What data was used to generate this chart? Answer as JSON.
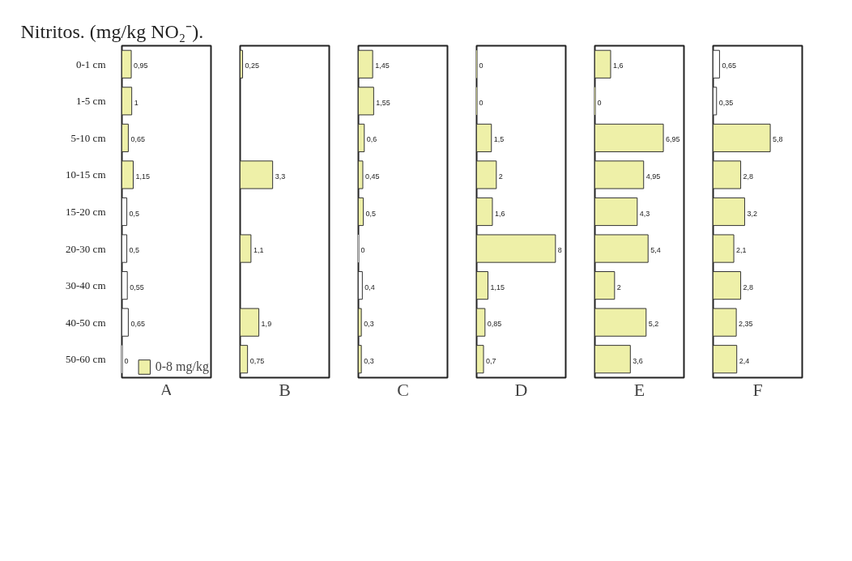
{
  "chart_data": [
    {
      "type": "bar",
      "orientation": "horizontal",
      "title": "Nitritos. (mg/kg NO₂⁻).",
      "xlabel": "A",
      "categories": [
        "0-1 cm",
        "1-5 cm",
        "5-10 cm",
        "10-15 cm",
        "15-20 cm",
        "20-30 cm",
        "30-40 cm",
        "40-50 cm",
        "50-60 cm"
      ],
      "tick_labels": "y",
      "legend": "bottom",
      "series": [
        {
          "name": "0-8 mg/kg",
          "color": "#eef0a8",
          "colors": [
            "#eef0a8",
            "#eef0a8",
            "#eef0a8",
            "#eef0a8",
            "#ffffff",
            "#ffffff",
            "#ffffff",
            "#ffffff",
            "#ffffff"
          ],
          "values": [
            0.95,
            1,
            0.65,
            1.15,
            0.5,
            0.5,
            0.55,
            0.65,
            0
          ],
          "value_labels": [
            "0,95",
            "1",
            "0,65",
            "1,15",
            "0,5",
            "0,5",
            "0,55",
            "0,65",
            "0"
          ]
        }
      ]
    },
    {
      "type": "bar",
      "orientation": "horizontal",
      "xlabel": "B",
      "categories": [
        null,
        null,
        null,
        null,
        null,
        null,
        null,
        null,
        null
      ],
      "tick_labels": false,
      "series": [
        {
          "color": "#eef0a8",
          "values": [
            0.25,
            null,
            null,
            3.3,
            null,
            1.1,
            null,
            1.9,
            0.75
          ],
          "value_labels": [
            "0,25",
            null,
            null,
            "3,3",
            null,
            "1,1",
            null,
            "1,9",
            "0,75"
          ]
        }
      ]
    },
    {
      "type": "bar",
      "orientation": "horizontal",
      "xlabel": "C",
      "categories": [
        null,
        null,
        null,
        null,
        null,
        null,
        null,
        null,
        null
      ],
      "tick_labels": false,
      "series": [
        {
          "color": "#eef0a8",
          "colors": [
            "#eef0a8",
            "#eef0a8",
            "#eef0a8",
            "#eef0a8",
            "#eef0a8",
            "#ffffff",
            "#ffffff",
            "#eef0a8",
            "#eef0a8"
          ],
          "values": [
            1.45,
            1.55,
            0.6,
            0.45,
            0.5,
            0,
            0.4,
            0.3,
            0.3
          ],
          "value_labels": [
            "1,45",
            "1,55",
            "0,6",
            "0,45",
            "0,5",
            "0",
            "0,4",
            "0,3",
            "0,3"
          ]
        }
      ]
    },
    {
      "type": "bar",
      "orientation": "horizontal",
      "xlabel": "D",
      "categories": [
        null,
        null,
        null,
        null,
        null,
        null,
        null,
        null,
        null
      ],
      "tick_labels": false,
      "series": [
        {
          "color": "#eef0a8",
          "values": [
            0,
            0,
            1.5,
            2,
            1.6,
            8,
            1.15,
            0.85,
            0.7
          ],
          "value_labels": [
            "0",
            "0",
            "1,5",
            "2",
            "1,6",
            "8",
            "1,15",
            "0,85",
            "0,7"
          ]
        }
      ]
    },
    {
      "type": "bar",
      "orientation": "horizontal",
      "xlabel": "E",
      "categories": [
        null,
        null,
        null,
        null,
        null,
        null,
        null,
        null,
        null
      ],
      "tick_labels": false,
      "series": [
        {
          "color": "#eef0a8",
          "values": [
            1.6,
            0,
            6.95,
            4.95,
            4.3,
            5.4,
            2,
            5.2,
            3.6
          ],
          "value_labels": [
            "1,6",
            "0",
            "6,95",
            "4,95",
            "4,3",
            "5,4",
            "2",
            "5,2",
            "3,6"
          ]
        }
      ]
    },
    {
      "type": "bar",
      "orientation": "horizontal",
      "xlabel": "F",
      "categories": [
        null,
        null,
        null,
        null,
        null,
        null,
        null,
        null,
        null
      ],
      "tick_labels": false,
      "series": [
        {
          "color": "#eef0a8",
          "colors": [
            "#ffffff",
            "#ffffff",
            "#eef0a8",
            "#eef0a8",
            "#eef0a8",
            "#eef0a8",
            "#eef0a8",
            "#eef0a8",
            "#eef0a8"
          ],
          "values": [
            0.65,
            0.35,
            5.8,
            2.8,
            3.2,
            2.1,
            2.8,
            2.35,
            2.4
          ],
          "value_labels": [
            "0,65",
            "0,35",
            "5,8",
            "2,8",
            "3,2",
            "2,1",
            "2,8",
            "2,35",
            "2,4"
          ]
        }
      ]
    }
  ]
}
